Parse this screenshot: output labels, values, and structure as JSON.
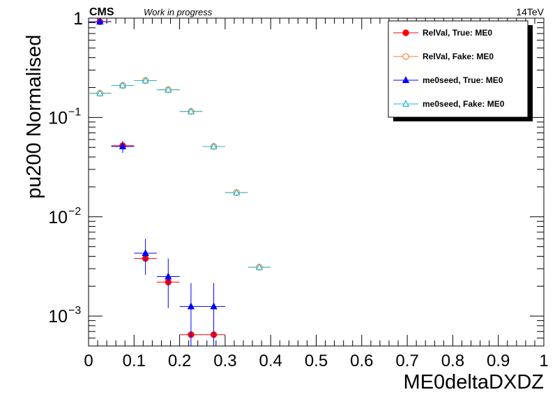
{
  "header": {
    "experiment": "CMS",
    "status": "Work in progress",
    "energy": "14TeV"
  },
  "chart_data": {
    "type": "scatter",
    "xlabel": "ME0deltaDXDZ",
    "ylabel": "pu200 Normalised",
    "xlim": [
      0,
      1
    ],
    "ylim": [
      0.0005,
      1
    ],
    "y_scale": "log",
    "x_ticks": [
      "0",
      "0.1",
      "0.2",
      "0.3",
      "0.4",
      "0.5",
      "0.6",
      "0.7",
      "0.8",
      "0.9",
      "1"
    ],
    "y_ticks": [
      {
        "value": 1,
        "label": "1"
      },
      {
        "value": 0.1,
        "base": "10",
        "exp": "−1"
      },
      {
        "value": 0.01,
        "base": "10",
        "exp": "−2"
      },
      {
        "value": 0.001,
        "base": "10",
        "exp": "−3"
      }
    ],
    "legend_position": "top-right",
    "series": [
      {
        "name": "RelVal, True: ME0",
        "color": "#ff0000",
        "marker": "filled-circle",
        "points": [
          {
            "x": 0.025,
            "y": 0.92
          },
          {
            "x": 0.075,
            "y": 0.052
          },
          {
            "x": 0.125,
            "y": 0.0038
          },
          {
            "x": 0.175,
            "y": 0.0022
          },
          {
            "x": 0.225,
            "y": 0.00065
          },
          {
            "x": 0.275,
            "y": 0.00065
          }
        ]
      },
      {
        "name": "RelVal, Fake: ME0",
        "color": "#ff7f2a",
        "marker": "open-circle",
        "points": [
          {
            "x": 0.025,
            "y": 0.175
          },
          {
            "x": 0.075,
            "y": 0.21
          },
          {
            "x": 0.125,
            "y": 0.235
          },
          {
            "x": 0.175,
            "y": 0.19
          },
          {
            "x": 0.225,
            "y": 0.115
          },
          {
            "x": 0.275,
            "y": 0.051
          },
          {
            "x": 0.325,
            "y": 0.0175
          },
          {
            "x": 0.375,
            "y": 0.0031
          }
        ]
      },
      {
        "name": "me0seed, True: ME0",
        "color": "#0000ff",
        "marker": "filled-triangle",
        "points": [
          {
            "x": 0.025,
            "y": 0.92
          },
          {
            "x": 0.075,
            "y": 0.051,
            "err": 0.007
          },
          {
            "x": 0.125,
            "y": 0.0043,
            "err": 0.0017
          },
          {
            "x": 0.175,
            "y": 0.0025,
            "err": 0.0013
          },
          {
            "x": 0.225,
            "y": 0.00125,
            "err": 0.0009
          },
          {
            "x": 0.275,
            "y": 0.00125,
            "err": 0.0009
          }
        ]
      },
      {
        "name": "me0seed, Fake: ME0",
        "color": "#22b8cf",
        "marker": "open-triangle",
        "points": [
          {
            "x": 0.025,
            "y": 0.175
          },
          {
            "x": 0.075,
            "y": 0.21
          },
          {
            "x": 0.125,
            "y": 0.235
          },
          {
            "x": 0.175,
            "y": 0.19
          },
          {
            "x": 0.225,
            "y": 0.115
          },
          {
            "x": 0.275,
            "y": 0.051
          },
          {
            "x": 0.325,
            "y": 0.0175
          },
          {
            "x": 0.375,
            "y": 0.0031
          }
        ]
      }
    ]
  }
}
